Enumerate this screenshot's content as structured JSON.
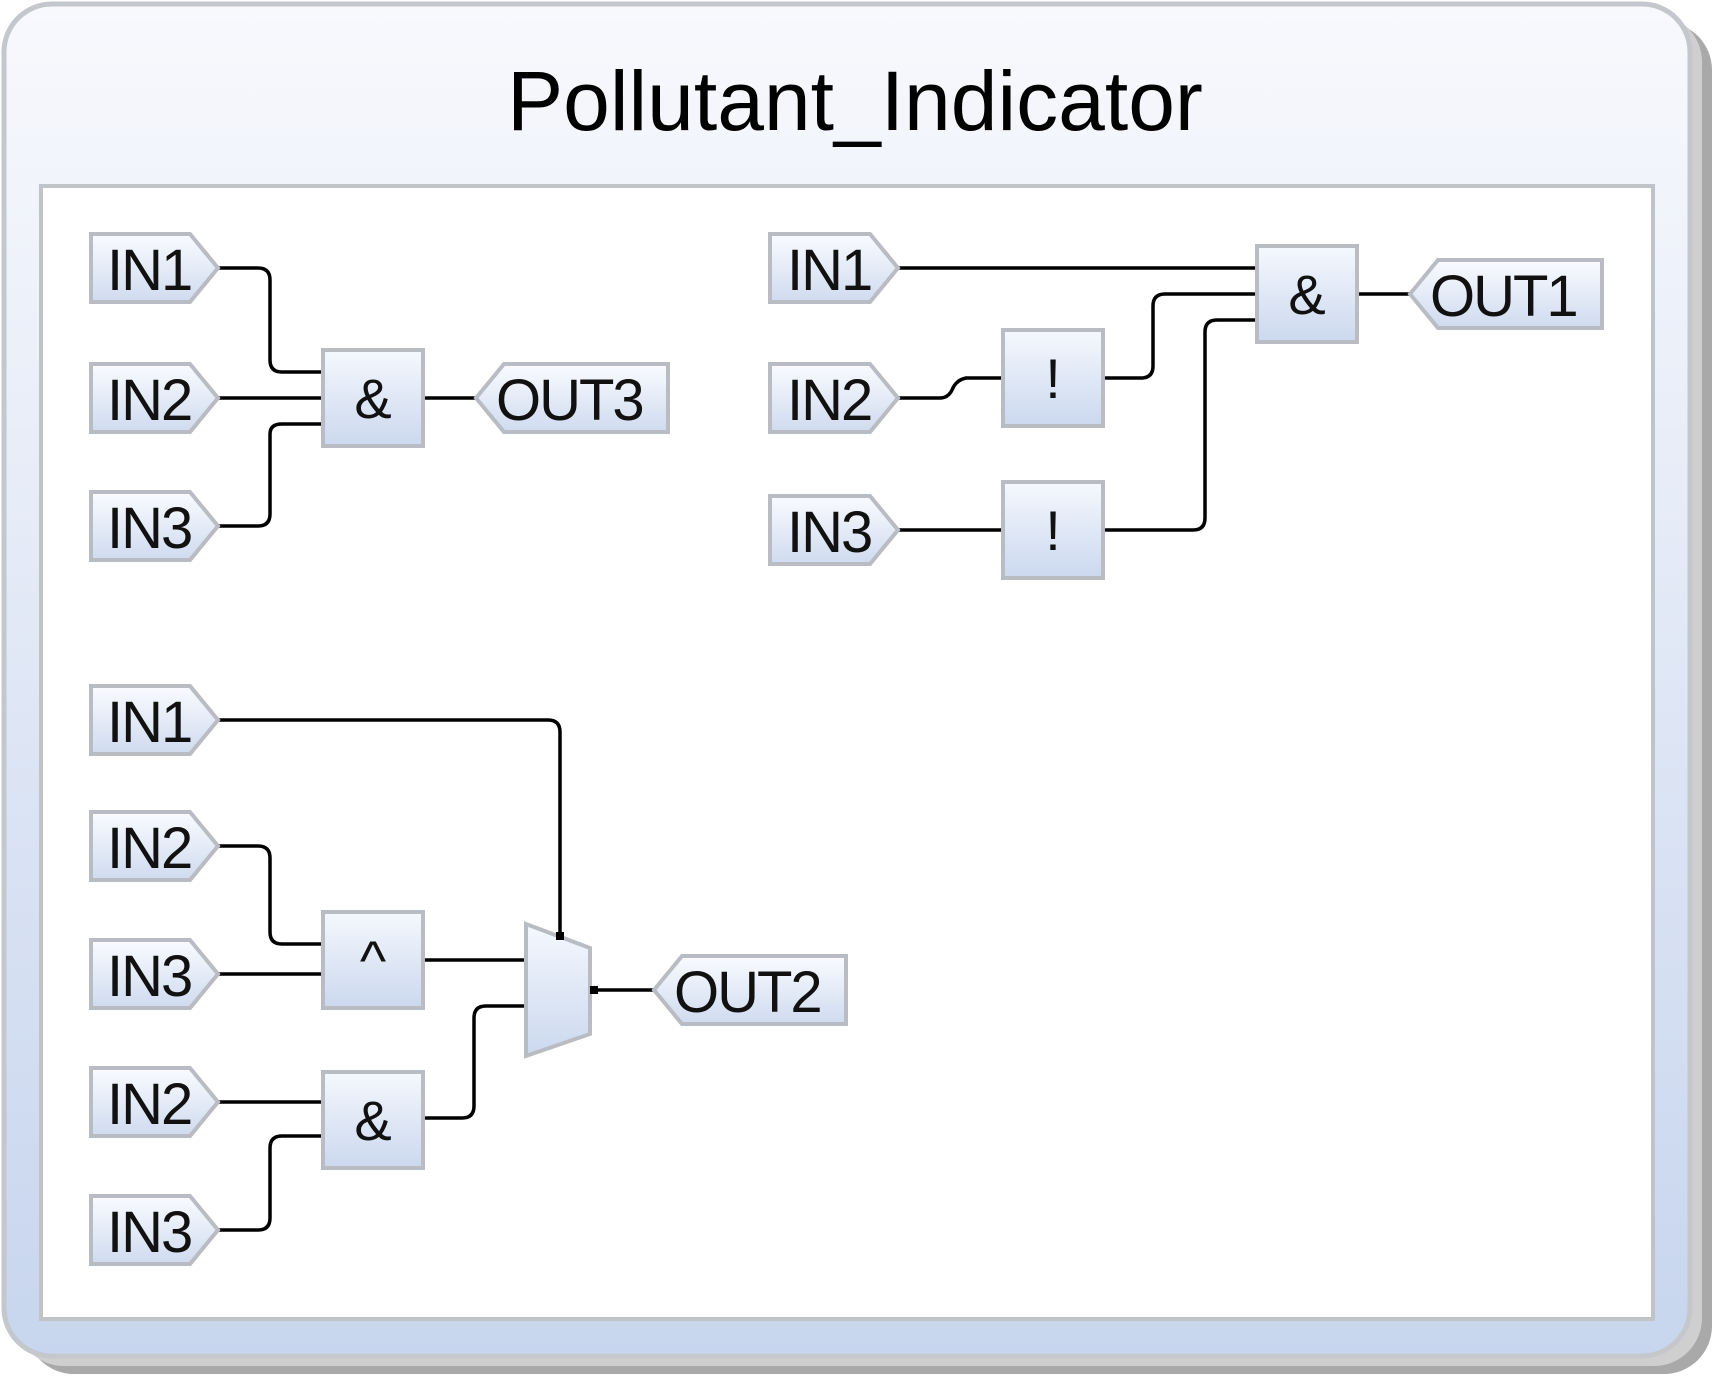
{
  "title": "Pollutant_Indicator",
  "colors": {
    "frame_top": "#f8f9fd",
    "frame_bottom": "#c7d5ee",
    "block_border": "#b9bcc2",
    "wire": "#000000"
  },
  "circuits": {
    "out3": {
      "inputs": [
        "IN1",
        "IN2",
        "IN3"
      ],
      "gate": "&",
      "output": "OUT3"
    },
    "out1": {
      "inputs": [
        "IN1",
        "IN2",
        "IN3"
      ],
      "not_gates": [
        "!",
        "!"
      ],
      "gate": "&",
      "output": "OUT1"
    },
    "out2": {
      "inputs": [
        "IN1",
        "IN2",
        "IN3",
        "IN2",
        "IN3"
      ],
      "xor_gate": "^",
      "and_gate": "&",
      "mux": "multiplexer",
      "output": "OUT2"
    }
  },
  "icons": [
    "multiplexer-icon"
  ]
}
